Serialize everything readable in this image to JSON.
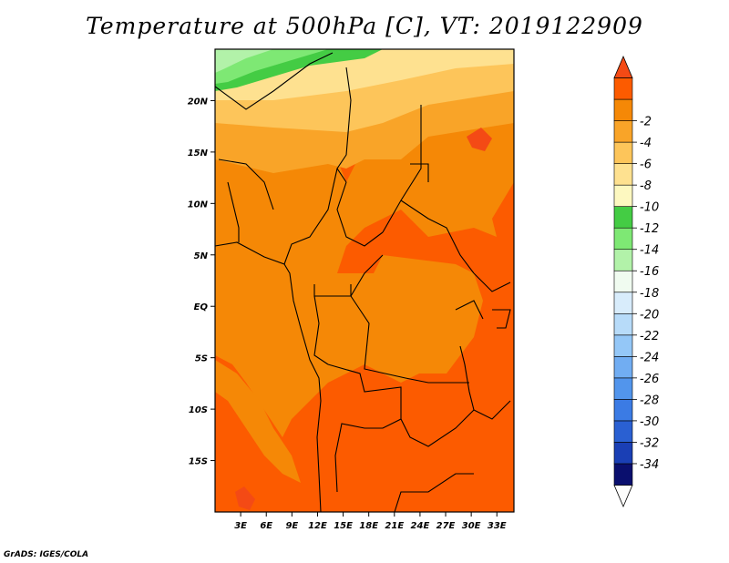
{
  "title": "Temperature at 500hPa [C], VT: 2019122909",
  "credit": "GrADS: IGES/COLA",
  "map": {
    "lon_range": [
      0,
      35
    ],
    "lat_range": [
      -20,
      25
    ],
    "lon_ticks": [
      {
        "lon": 3,
        "label": "3E"
      },
      {
        "lon": 6,
        "label": "6E"
      },
      {
        "lon": 9,
        "label": "9E"
      },
      {
        "lon": 12,
        "label": "12E"
      },
      {
        "lon": 15,
        "label": "15E"
      },
      {
        "lon": 18,
        "label": "18E"
      },
      {
        "lon": 21,
        "label": "21E"
      },
      {
        "lon": 24,
        "label": "24E"
      },
      {
        "lon": 27,
        "label": "27E"
      },
      {
        "lon": 30,
        "label": "30E"
      },
      {
        "lon": 33,
        "label": "33E"
      }
    ],
    "lat_ticks": [
      {
        "lat": 20,
        "label": "20N"
      },
      {
        "lat": 15,
        "label": "15N"
      },
      {
        "lat": 10,
        "label": "10N"
      },
      {
        "lat": 5,
        "label": "5N"
      },
      {
        "lat": 0,
        "label": "EQ"
      },
      {
        "lat": -5,
        "label": "5S"
      },
      {
        "lat": -10,
        "label": "10S"
      },
      {
        "lat": -15,
        "label": "15S"
      }
    ]
  },
  "colorbar": {
    "colors": [
      "#fdfdfc",
      "#0a0f6e",
      "#1a3fb5",
      "#2a60d2",
      "#3b7be4",
      "#5295ec",
      "#71adf2",
      "#94c7f7",
      "#b7dbf9",
      "#d8ecfb",
      "#f0fbf0",
      "#b2f2a9",
      "#7ee874",
      "#44cc44",
      "#fdf8c0",
      "#fee190",
      "#fdc55a",
      "#f9a428",
      "#f58806",
      "#fc5b00",
      "#f44a15"
    ],
    "labels": [
      "-34",
      "-32",
      "-30",
      "-28",
      "-26",
      "-24",
      "-22",
      "-20",
      "-18",
      "-16",
      "-14",
      "-12",
      "-10",
      "-8",
      "-6",
      "-4",
      "-2"
    ]
  }
}
